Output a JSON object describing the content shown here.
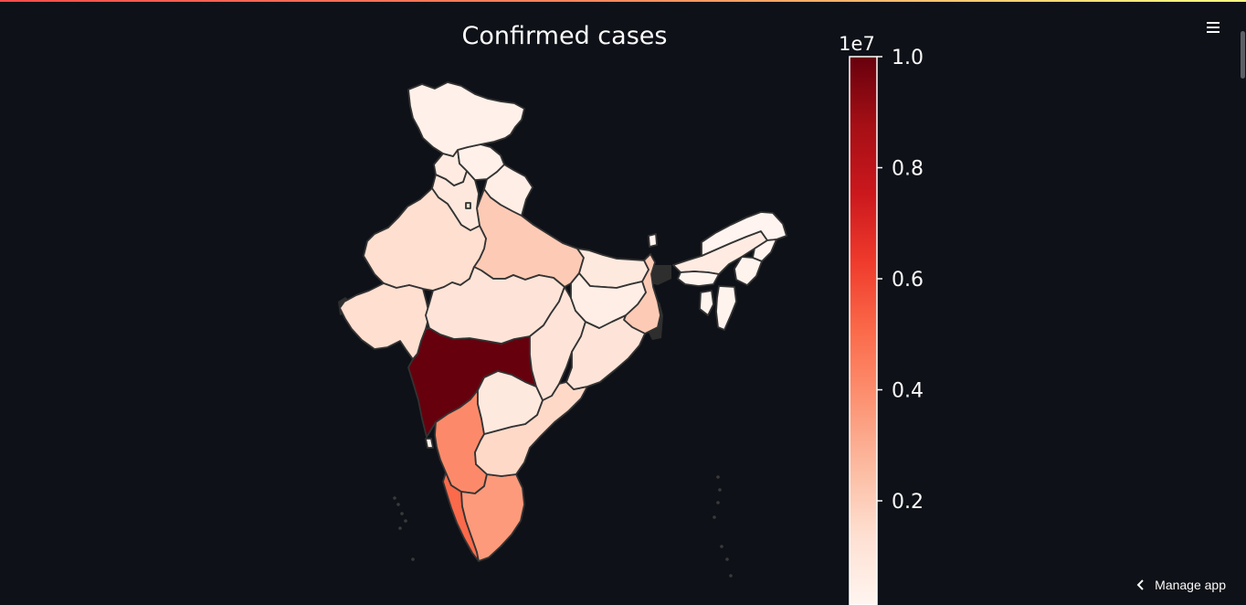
{
  "app": {
    "menu_icon": "hamburger-menu-icon",
    "manage_app_label": "Manage app",
    "manage_app_icon": "chevron-left-icon"
  },
  "chart_data": {
    "type": "choropleth",
    "title": "Confirmed cases",
    "colorbar": {
      "min": 0,
      "max": 10000000,
      "exponent_label": "1e7",
      "tick_values": [
        0.2,
        0.4,
        0.6,
        0.8,
        1.0
      ],
      "tick_labels": [
        "0.2",
        "0.4",
        "0.6",
        "0.8",
        "1.0"
      ],
      "colormap": "Reds",
      "colors": [
        "#fff5f0",
        "#fee0d2",
        "#fcbba1",
        "#fc9272",
        "#fb6a4a",
        "#ef3b2c",
        "#cb181d",
        "#a50f15",
        "#67000d"
      ]
    },
    "regions": [
      {
        "name": "Maharashtra",
        "value": 10000000
      },
      {
        "name": "Kerala",
        "value": 5000000
      },
      {
        "name": "Karnataka",
        "value": 4000000
      },
      {
        "name": "Tamil Nadu",
        "value": 3500000
      },
      {
        "name": "Uttar Pradesh",
        "value": 2000000
      },
      {
        "name": "West Bengal",
        "value": 2000000
      },
      {
        "name": "Andhra Pradesh",
        "value": 1500000
      },
      {
        "name": "Rajasthan",
        "value": 1300000
      },
      {
        "name": "Gujarat",
        "value": 1300000
      },
      {
        "name": "Madhya Pradesh",
        "value": 1000000
      },
      {
        "name": "Chhattisgarh",
        "value": 1000000
      },
      {
        "name": "Odisha",
        "value": 1000000
      },
      {
        "name": "Haryana",
        "value": 800000
      },
      {
        "name": "Punjab",
        "value": 600000
      },
      {
        "name": "Delhi",
        "value": 1400000
      },
      {
        "name": "Telangana",
        "value": 700000
      },
      {
        "name": "Bihar",
        "value": 700000
      },
      {
        "name": "Jharkhand",
        "value": 400000
      },
      {
        "name": "Uttarakhand",
        "value": 400000
      },
      {
        "name": "Himachal Pradesh",
        "value": 300000
      },
      {
        "name": "Jammu and Kashmir",
        "value": 300000
      },
      {
        "name": "Goa",
        "value": 200000
      },
      {
        "name": "Assam",
        "value": 600000
      },
      {
        "name": "Arunachal Pradesh",
        "value": 60000
      },
      {
        "name": "Nagaland",
        "value": 30000
      },
      {
        "name": "Manipur",
        "value": 100000
      },
      {
        "name": "Mizoram",
        "value": 100000
      },
      {
        "name": "Tripura",
        "value": 80000
      },
      {
        "name": "Meghalaya",
        "value": 80000
      },
      {
        "name": "Sikkim",
        "value": 30000
      }
    ]
  }
}
